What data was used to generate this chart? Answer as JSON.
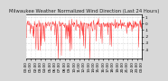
{
  "title": "Milwaukee Weather Normalized Wind Direction (Last 24 Hours)",
  "ylim": [
    -5.5,
    1.5
  ],
  "yticks": [
    1,
    0,
    -1,
    -2,
    -3,
    -4
  ],
  "ytick_labels": [
    "1",
    "0",
    "-1",
    "-2",
    "-3",
    "-4"
  ],
  "num_points": 288,
  "line_color": "#ff0000",
  "background_color": "#d8d8d8",
  "plot_bg_color": "#ffffff",
  "grid_color": "#aaaaaa",
  "title_fontsize": 3.8,
  "tick_fontsize": 3.0,
  "seed": 42
}
